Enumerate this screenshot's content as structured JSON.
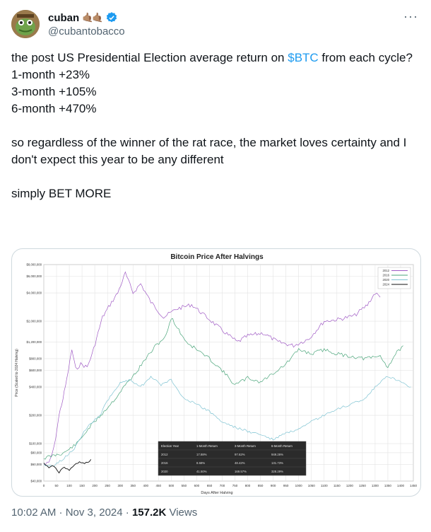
{
  "author": {
    "name": "cuban",
    "emoji": "🤙🏽🤙🏽",
    "handle": "@cubantobacco",
    "verified": true
  },
  "more_icon": "more-horizontal-icon",
  "tweet": {
    "line1_pre": "the post US Presidential Election average return on ",
    "cashtag": "$BTC",
    "line1_post": " from each cycle?",
    "body": "\n1-month +23%\n3-month +105%\n6-month +470%\n\nso regardless of the winner of the rat race, the market loves certainty and I don't expect this year to be any different\n\nsimply BET MORE"
  },
  "chart_data": {
    "type": "line",
    "title": "Bitcoin Price After Halvings",
    "xlabel": "Days After Halving",
    "ylabel": "Price (Scaled to 2024 Halving)",
    "x_ticks": [
      "0",
      "50",
      "100",
      "150",
      "200",
      "250",
      "300",
      "350",
      "400",
      "450",
      "500",
      "550",
      "600",
      "650",
      "700",
      "750",
      "800",
      "850",
      "900",
      "950",
      "1000",
      "1050",
      "1100",
      "1150",
      "1200",
      "1250",
      "1300",
      "1350",
      "1400",
      "1450"
    ],
    "y_ticks": [
      "$8,000,000",
      "$6,000,000",
      "$4,000,000",
      "$2,000,000",
      "$1,200,000",
      "$800,000",
      "$600,000",
      "$400,000",
      "$200,000",
      "$100,000",
      "$80,000",
      "$60,000",
      "$40,000"
    ],
    "legend": [
      "2012",
      "2016",
      "2020",
      "2024"
    ],
    "series_colors": {
      "2012": "#a05bc5",
      "2016": "#4aa57a",
      "2020": "#7ec3d2",
      "2024": "#111111"
    },
    "table": {
      "headers": [
        "Election Year",
        "1-Month Return",
        "3-Month Return",
        "6-Month Return"
      ],
      "rows": [
        [
          "2012",
          "17.88%",
          "97.62%",
          "949.26%"
        ],
        [
          "2016",
          "8.68%",
          "48.42%",
          "131.73%"
        ],
        [
          "2020",
          "41.50%",
          "169.57%",
          "328.29%"
        ]
      ]
    }
  },
  "footer": {
    "timestamp": "10:02 AM · Nov 3, 2024 · ",
    "views_count": "157.2K",
    "views_label": " Views"
  }
}
